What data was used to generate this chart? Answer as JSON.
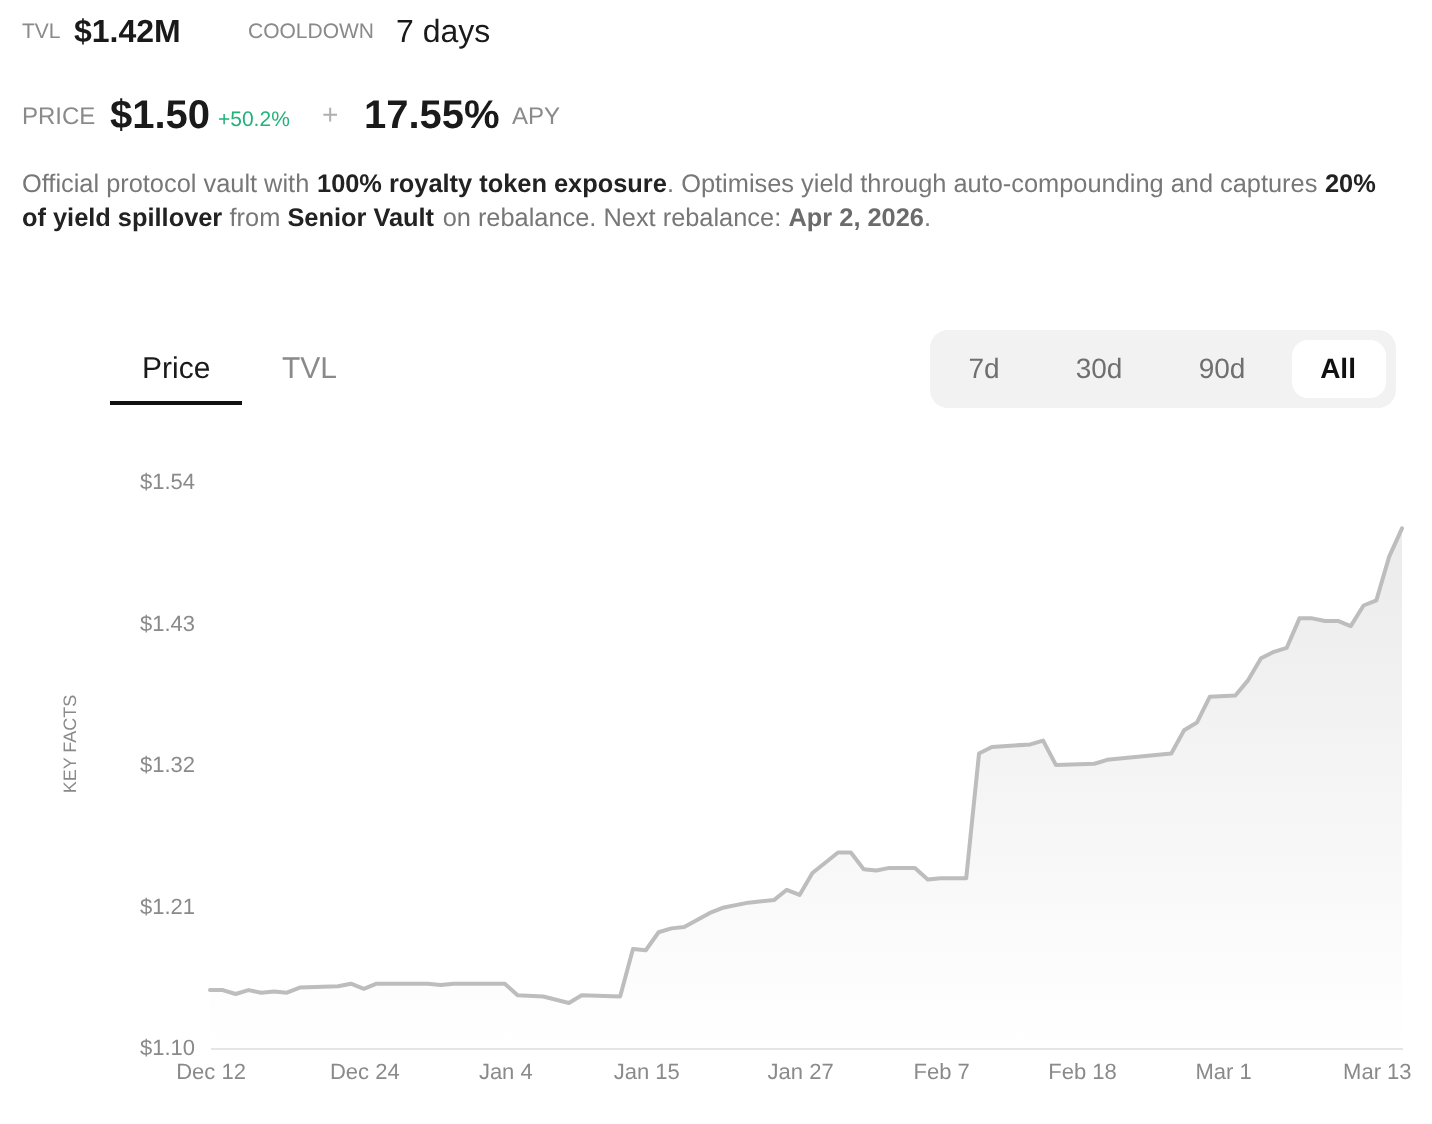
{
  "chart_data": {
    "type": "area",
    "x": [
      "2025-12-12",
      "2025-12-13",
      "2025-12-14",
      "2025-12-15",
      "2025-12-16",
      "2025-12-17",
      "2025-12-18",
      "2025-12-19",
      "2025-12-22",
      "2025-12-23",
      "2025-12-24",
      "2025-12-25",
      "2025-12-29",
      "2025-12-30",
      "2025-12-31",
      "2026-01-04",
      "2026-01-05",
      "2026-01-07",
      "2026-01-09",
      "2026-01-10",
      "2026-01-13",
      "2026-01-14",
      "2026-01-15",
      "2026-01-16",
      "2026-01-17",
      "2026-01-18",
      "2026-01-20",
      "2026-01-21",
      "2026-01-23",
      "2026-01-25",
      "2026-01-26",
      "2026-01-27",
      "2026-01-28",
      "2026-01-30",
      "2026-01-31",
      "2026-02-01",
      "2026-02-02",
      "2026-02-03",
      "2026-02-05",
      "2026-02-06",
      "2026-02-07",
      "2026-02-09",
      "2026-02-10",
      "2026-02-11",
      "2026-02-14",
      "2026-02-15",
      "2026-02-16",
      "2026-02-19",
      "2026-02-20",
      "2026-02-25",
      "2026-02-26",
      "2026-02-27",
      "2026-02-28",
      "2026-03-02",
      "2026-03-03",
      "2026-03-04",
      "2026-03-05",
      "2026-03-06",
      "2026-03-07",
      "2026-03-08",
      "2026-03-09",
      "2026-03-10",
      "2026-03-11",
      "2026-03-12",
      "2026-03-13",
      "2026-03-14",
      "2026-03-15"
    ],
    "series": [
      {
        "color": "#bdbdbd",
        "values": [
          1.145,
          1.145,
          1.142,
          1.145,
          1.143,
          1.144,
          1.143,
          1.147,
          1.148,
          1.15,
          1.146,
          1.15,
          1.15,
          1.149,
          1.15,
          1.15,
          1.141,
          1.14,
          1.135,
          1.141,
          1.14,
          1.177,
          1.176,
          1.19,
          1.193,
          1.194,
          1.205,
          1.209,
          1.213,
          1.215,
          1.223,
          1.219,
          1.236,
          1.252,
          1.252,
          1.239,
          1.238,
          1.24,
          1.24,
          1.231,
          1.232,
          1.232,
          1.329,
          1.334,
          1.336,
          1.339,
          1.32,
          1.321,
          1.324,
          1.329,
          1.347,
          1.353,
          1.373,
          1.374,
          1.386,
          1.403,
          1.408,
          1.411,
          1.434,
          1.434,
          1.432,
          1.432,
          1.428,
          1.444,
          1.448,
          1.482,
          1.504
        ]
      }
    ],
    "xlim": [
      "2025-12-12",
      "2026-03-15"
    ],
    "xticks": [
      {
        "value": "2025-12-12",
        "label": "Dec 12"
      },
      {
        "value": "2025-12-24",
        "label": "Dec 24"
      },
      {
        "value": "2026-01-04",
        "label": "Jan 4"
      },
      {
        "value": "2026-01-15",
        "label": "Jan 15"
      },
      {
        "value": "2026-01-27",
        "label": "Jan 27"
      },
      {
        "value": "2026-02-07",
        "label": "Feb 7"
      },
      {
        "value": "2026-02-18",
        "label": "Feb 18"
      },
      {
        "value": "2026-03-01",
        "label": "Mar 1"
      },
      {
        "value": "2026-03-13",
        "label": "Mar 13"
      }
    ],
    "ylim": [
      1.1,
      1.54
    ],
    "yticks": [
      {
        "value": 1.1,
        "label": "$1.10"
      },
      {
        "value": 1.21,
        "label": "$1.21"
      },
      {
        "value": 1.32,
        "label": "$1.32"
      },
      {
        "value": 1.43,
        "label": "$1.43"
      },
      {
        "value": 1.54,
        "label": "$1.54"
      }
    ],
    "annotations": [
      "TVL",
      "$1.42M",
      "COOLDOWN",
      "7 days",
      "PRICE",
      "$1.50",
      "+50.2%",
      "+",
      "17.55%",
      "APY",
      "Official protocol vault with",
      "100% royalty token exposure",
      ". Optimises yield through auto-compounding and captures",
      "20%",
      "of yield spillover",
      "from",
      "Senior Vault",
      "on rebalance. Next rebalance:",
      "Apr 2, 2026",
      ".",
      "Price",
      "TVL",
      "7d",
      "30d",
      "90d",
      "All",
      "KEY FACTS"
    ]
  }
}
